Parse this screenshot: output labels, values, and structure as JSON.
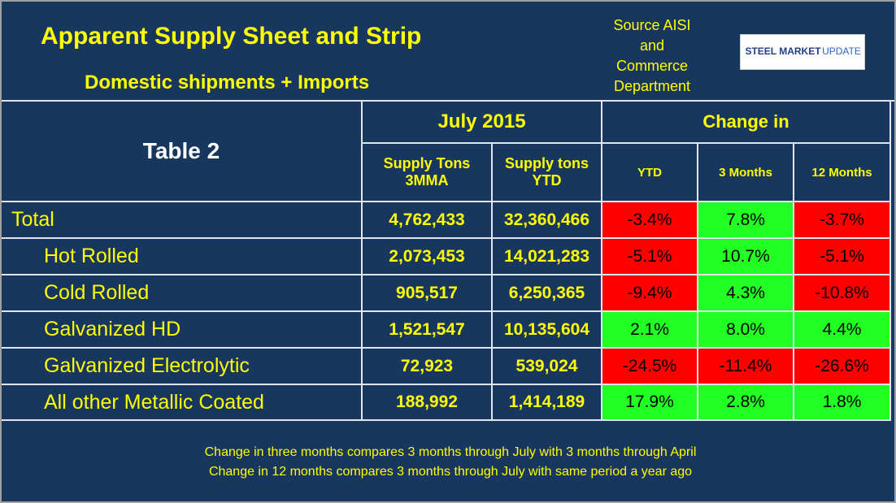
{
  "header": {
    "title": "Apparent Supply Sheet and Strip",
    "subtitle": "Domestic shipments + Imports",
    "source": [
      "Source AISI",
      "and",
      "Commerce",
      "Department"
    ],
    "logo": [
      "STEEL MARKET",
      "UPDATE"
    ]
  },
  "table": {
    "label": "Table 2",
    "group_headers": [
      "July 2015",
      "Change in"
    ],
    "columns": [
      "Supply Tons 3MMA",
      "Supply tons YTD",
      "YTD",
      "3 Months",
      "12 Months"
    ],
    "rows": [
      [
        "Total",
        "4,762,433",
        "32,360,466",
        "-3.4%",
        "7.8%",
        "-3.7%"
      ],
      [
        "Hot Rolled",
        "2,073,453",
        "14,021,283",
        "-5.1%",
        "10.7%",
        "-5.1%"
      ],
      [
        "Cold Rolled",
        "905,517",
        "6,250,365",
        "-9.4%",
        "4.3%",
        "-10.8%"
      ],
      [
        "Galvanized HD",
        "1,521,547",
        "10,135,604",
        "2.1%",
        "8.0%",
        "4.4%"
      ],
      [
        "Galvanized Electrolytic",
        "72,923",
        "539,024",
        "-24.5%",
        "-11.4%",
        "-26.6%"
      ],
      [
        "All other Metallic Coated",
        "188,992",
        "1,414,189",
        "17.9%",
        "2.8%",
        "1.8%"
      ]
    ]
  },
  "footnotes": [
    "Change in three months compares 3 months through July with 3 months through April",
    "Change in 12 months compares 3 months through July with same period a year ago"
  ]
}
